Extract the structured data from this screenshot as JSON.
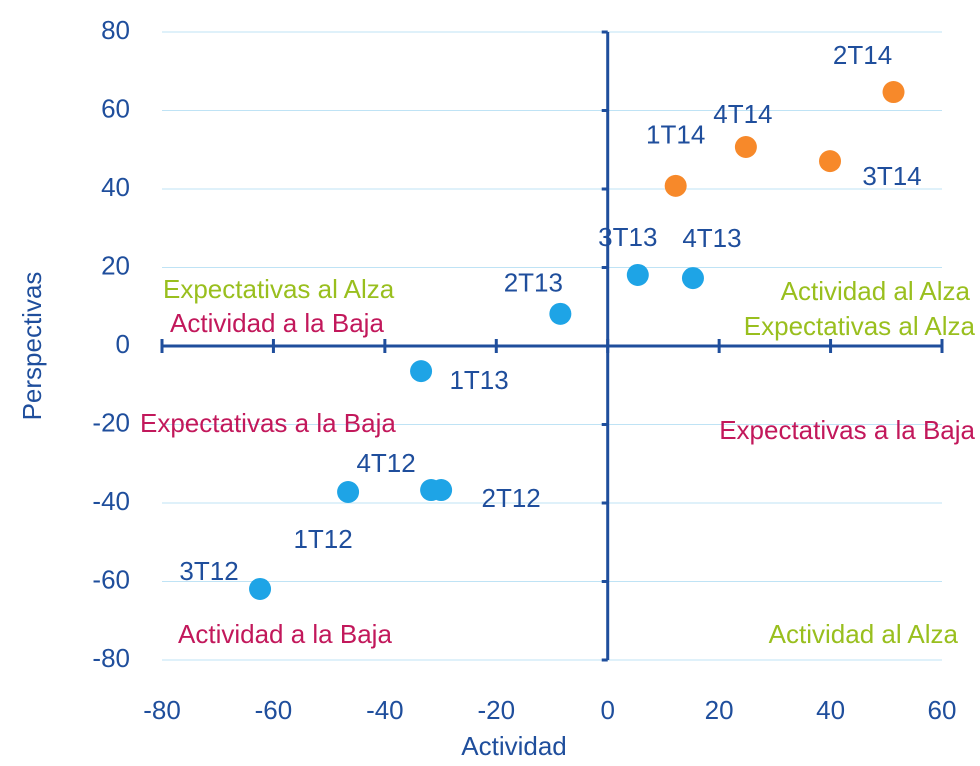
{
  "chart_data": {
    "type": "scatter",
    "x_label": "Actividad",
    "y_label": "Perspectivas",
    "point_labels": [
      "2T14",
      "4T14",
      "3T14",
      "1T14",
      "3T13",
      "4T13",
      "2T13",
      "1T13",
      "1T12",
      "4T12",
      "2T12",
      "3T12"
    ],
    "x": [
      51.3,
      24.8,
      39.9,
      12.2,
      5.4,
      15.3,
      -8.5,
      -33.5,
      -46.6,
      -31.7,
      -29.9,
      -62.4
    ],
    "values": [
      64.7,
      50.7,
      47.1,
      40.8,
      18.1,
      17.3,
      8.2,
      -6.4,
      -37.2,
      -36.7,
      -36.7,
      -61.9
    ],
    "colors": [
      "#f7892a",
      "#f7892a",
      "#f7892a",
      "#f7892a",
      "#1ea4e6",
      "#1ea4e6",
      "#1ea4e6",
      "#1ea4e6",
      "#1ea4e6",
      "#1ea4e6",
      "#1ea4e6",
      "#1ea4e6"
    ],
    "xlim": [
      -80,
      60
    ],
    "xticks": [
      -80,
      -60,
      -40,
      -20,
      0,
      20,
      40,
      60
    ],
    "ylim": [
      -80,
      80
    ],
    "yticks": [
      -80,
      -60,
      -40,
      -20,
      0,
      20,
      40,
      60,
      80
    ],
    "grid": true,
    "annotations": [
      {
        "text": "Expectativas al Alza",
        "color": "#99bf1e"
      },
      {
        "text": "Actividad a la Baja",
        "color": "#c2185b"
      },
      {
        "text": "Actividad al Alza",
        "color": "#99bf1e"
      },
      {
        "text": "Expectativas al Alza",
        "color": "#99bf1e"
      },
      {
        "text": "Expectativas a la Baja",
        "color": "#c2185b"
      },
      {
        "text": "Expectativas a la Baja",
        "color": "#c2185b"
      },
      {
        "text": "Actividad a la Baja",
        "color": "#c2185b"
      },
      {
        "text": "Actividad al Alza",
        "color": "#99bf1e"
      }
    ]
  }
}
